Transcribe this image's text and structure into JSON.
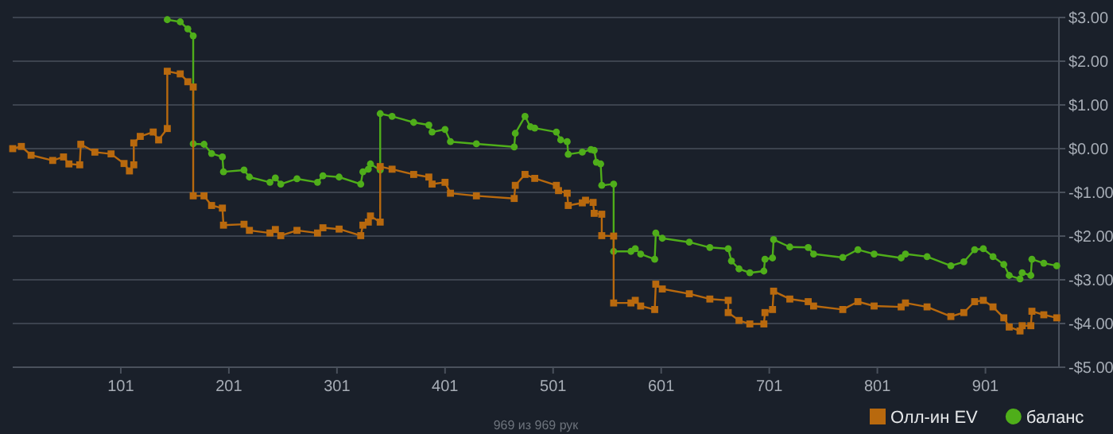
{
  "chart_data": {
    "type": "line",
    "xlim": [
      1,
      969
    ],
    "xticks": [
      101,
      201,
      301,
      401,
      501,
      601,
      701,
      801,
      901
    ],
    "ylim": [
      -5,
      3
    ],
    "yticks": [
      {
        "value": 3,
        "label": "$3.00"
      },
      {
        "value": 2,
        "label": "$2.00"
      },
      {
        "value": 1,
        "label": "$1.00"
      },
      {
        "value": 0,
        "label": "$0.00"
      },
      {
        "value": -1,
        "label": "-$1.00"
      },
      {
        "value": -2,
        "label": "-$2.00"
      },
      {
        "value": -3,
        "label": "-$3.00"
      },
      {
        "value": -4,
        "label": "-$4.00"
      },
      {
        "value": -5,
        "label": "-$5.00"
      }
    ],
    "grid": "y",
    "legend": "bottom right",
    "line_style": "solid",
    "annotations": [
      "969 из 969 рук"
    ],
    "series": [
      {
        "name": "Олл-ин EV",
        "color": "#b8690e",
        "marker": "square",
        "x": [
          1,
          9,
          18,
          38,
          48,
          53,
          63,
          64,
          77,
          92,
          104,
          109,
          113,
          113,
          119,
          131,
          136,
          144,
          144,
          156,
          163,
          168,
          168,
          178,
          185,
          195,
          196,
          215,
          220,
          239,
          244,
          249,
          264,
          283,
          288,
          303,
          323,
          325,
          330,
          332,
          341,
          341,
          352,
          372,
          386,
          389,
          401,
          406,
          430,
          465,
          466,
          475,
          484,
          504,
          506,
          514,
          515,
          528,
          531,
          538,
          539,
          546,
          546,
          557,
          557,
          573,
          577,
          582,
          595,
          596,
          602,
          627,
          646,
          663,
          663,
          673,
          683,
          696,
          697,
          704,
          705,
          720,
          737,
          742,
          769,
          783,
          798,
          823,
          827,
          847,
          869,
          881,
          891,
          899,
          908,
          918,
          923,
          933,
          935,
          943,
          944,
          955,
          967
        ],
        "values": [
          0,
          0.05,
          -0.15,
          -0.27,
          -0.19,
          -0.35,
          -0.37,
          0.1,
          -0.08,
          -0.12,
          -0.34,
          -0.51,
          -0.37,
          0.13,
          0.28,
          0.38,
          0.2,
          0.46,
          1.77,
          1.71,
          1.53,
          1.41,
          -1.08,
          -1.08,
          -1.3,
          -1.36,
          -1.75,
          -1.73,
          -1.87,
          -1.93,
          -1.85,
          -1.99,
          -1.87,
          -1.93,
          -1.81,
          -1.84,
          -1.99,
          -1.75,
          -1.68,
          -1.54,
          -1.68,
          -0.41,
          -0.47,
          -0.59,
          -0.65,
          -0.81,
          -0.77,
          -1.02,
          -1.08,
          -1.14,
          -0.84,
          -0.59,
          -0.68,
          -0.84,
          -0.96,
          -1.02,
          -1.3,
          -1.24,
          -1.18,
          -1.23,
          -1.48,
          -1.5,
          -1.99,
          -2.0,
          -3.53,
          -3.53,
          -3.47,
          -3.6,
          -3.68,
          -3.1,
          -3.21,
          -3.32,
          -3.44,
          -3.47,
          -3.75,
          -3.93,
          -4.01,
          -4.01,
          -3.75,
          -3.68,
          -3.26,
          -3.44,
          -3.5,
          -3.6,
          -3.68,
          -3.5,
          -3.6,
          -3.62,
          -3.53,
          -3.62,
          -3.84,
          -3.75,
          -3.5,
          -3.47,
          -3.62,
          -3.87,
          -4.08,
          -4.17,
          -4.05,
          -4.05,
          -3.72,
          -3.8,
          -3.87
        ]
      },
      {
        "name": "баланс",
        "color": "#4fae1a",
        "marker": "circle",
        "x": [
          144,
          156,
          163,
          168,
          168,
          178,
          185,
          195,
          196,
          215,
          220,
          239,
          244,
          249,
          264,
          283,
          288,
          303,
          323,
          325,
          330,
          332,
          341,
          341,
          352,
          372,
          386,
          389,
          401,
          406,
          430,
          465,
          466,
          475,
          480,
          484,
          504,
          508,
          514,
          515,
          528,
          536,
          539,
          541,
          545,
          546,
          557,
          557,
          573,
          577,
          582,
          595,
          596,
          602,
          627,
          646,
          663,
          666,
          673,
          683,
          696,
          697,
          704,
          705,
          720,
          737,
          742,
          769,
          783,
          798,
          823,
          827,
          847,
          869,
          881,
          891,
          899,
          908,
          918,
          923,
          933,
          935,
          943,
          944,
          955,
          967
        ],
        "values": [
          2.95,
          2.9,
          2.74,
          2.58,
          0.11,
          0.1,
          -0.11,
          -0.19,
          -0.53,
          -0.49,
          -0.65,
          -0.77,
          -0.67,
          -0.81,
          -0.69,
          -0.77,
          -0.62,
          -0.65,
          -0.81,
          -0.53,
          -0.47,
          -0.35,
          -0.49,
          0.8,
          0.74,
          0.6,
          0.54,
          0.38,
          0.44,
          0.16,
          0.11,
          0.04,
          0.35,
          0.74,
          0.5,
          0.47,
          0.38,
          0.2,
          0.16,
          -0.13,
          -0.08,
          -0.02,
          -0.04,
          -0.31,
          -0.35,
          -0.84,
          -0.81,
          -2.35,
          -2.35,
          -2.29,
          -2.41,
          -2.53,
          -1.93,
          -2.05,
          -2.14,
          -2.26,
          -2.29,
          -2.57,
          -2.75,
          -2.84,
          -2.8,
          -2.53,
          -2.5,
          -2.08,
          -2.25,
          -2.26,
          -2.41,
          -2.49,
          -2.31,
          -2.41,
          -2.5,
          -2.41,
          -2.47,
          -2.68,
          -2.59,
          -2.31,
          -2.29,
          -2.47,
          -2.65,
          -2.9,
          -2.98,
          -2.84,
          -2.9,
          -2.53,
          -2.62,
          -2.68
        ]
      }
    ]
  }
}
